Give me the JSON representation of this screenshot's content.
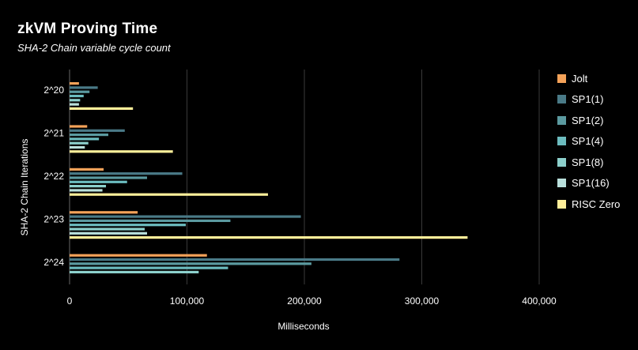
{
  "title": "zkVM Proving Time",
  "subtitle": "SHA-2 Chain variable cycle count",
  "chart_data": {
    "type": "bar",
    "orientation": "horizontal",
    "title": "zkVM Proving Time",
    "subtitle": "SHA-2 Chain variable cycle count",
    "xlabel": "Milliseconds",
    "ylabel": "SHA-2 Chain Iterations",
    "xlim": [
      0,
      400000
    ],
    "x_ticks": [
      0,
      100000,
      200000,
      300000,
      400000
    ],
    "x_tick_labels": [
      "0",
      "100,000",
      "200,000",
      "300,000",
      "400,000"
    ],
    "grid": "vertical",
    "legend_position": "right",
    "categories": [
      "2^20",
      "2^21",
      "2^22",
      "2^23",
      "2^24"
    ],
    "series": [
      {
        "name": "Jolt",
        "color": "#f4a259",
        "values": [
          8000,
          15000,
          29000,
          58000,
          117000
        ]
      },
      {
        "name": "SP1(1)",
        "color": "#4a7a87",
        "values": [
          24000,
          47000,
          96000,
          197000,
          281000
        ]
      },
      {
        "name": "SP1(2)",
        "color": "#5b9aa0",
        "values": [
          17000,
          33000,
          66000,
          137000,
          206000
        ]
      },
      {
        "name": "SP1(4)",
        "color": "#6cbcbf",
        "values": [
          12000,
          25000,
          49000,
          99000,
          135000
        ]
      },
      {
        "name": "SP1(8)",
        "color": "#8cd0cc",
        "values": [
          9000,
          16000,
          31000,
          64000,
          110000
        ]
      },
      {
        "name": "SP1(16)",
        "color": "#b9e0dc",
        "values": [
          8000,
          13000,
          28000,
          66000,
          null
        ]
      },
      {
        "name": "RISC Zero",
        "color": "#ffef9a",
        "values": [
          54000,
          88000,
          169000,
          339000,
          null
        ]
      }
    ]
  }
}
